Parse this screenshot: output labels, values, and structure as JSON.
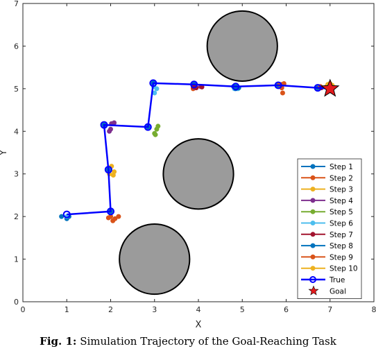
{
  "caption": {
    "label": "Fig. 1:",
    "text": "Simulation Trajectory of the Goal-Reaching Task"
  },
  "chart_data": {
    "type": "line",
    "title": "",
    "xlabel": "X",
    "ylabel": "Y",
    "xlim": [
      0,
      8
    ],
    "ylim": [
      0,
      7
    ],
    "xticks": [
      "0",
      "1",
      "2",
      "3",
      "4",
      "5",
      "6",
      "7",
      "8"
    ],
    "yticks": [
      "0",
      "1",
      "2",
      "3",
      "4",
      "5",
      "6",
      "7"
    ],
    "grid": false,
    "legend_position": "bottom-right",
    "obstacles": [
      {
        "cx": 5,
        "cy": 6,
        "r": 0.8
      },
      {
        "cx": 4,
        "cy": 3,
        "r": 0.8
      },
      {
        "cx": 3,
        "cy": 1,
        "r": 0.8
      }
    ],
    "goal": {
      "name": "Goal",
      "x": 7,
      "y": 5,
      "color": "#e41a1c"
    },
    "true_path": {
      "name": "True",
      "color": "#0000ff",
      "points": [
        [
          1.0,
          2.05
        ],
        [
          2.0,
          2.12
        ],
        [
          1.95,
          3.1
        ],
        [
          1.85,
          4.15
        ],
        [
          2.85,
          4.1
        ],
        [
          2.97,
          5.13
        ],
        [
          3.9,
          5.1
        ],
        [
          4.85,
          5.05
        ],
        [
          5.82,
          5.08
        ],
        [
          6.72,
          5.02
        ],
        [
          7.0,
          5.0
        ]
      ]
    },
    "series": [
      {
        "name": "Step 1",
        "color": "#0072BD",
        "points": [
          [
            0.88,
            2.0
          ],
          [
            1.0,
            1.95
          ],
          [
            1.05,
            2.0
          ],
          [
            2.0,
            2.12
          ],
          [
            1.95,
            3.1
          ],
          [
            1.85,
            4.15
          ],
          [
            2.85,
            4.1
          ],
          [
            2.97,
            5.13
          ],
          [
            3.9,
            5.1
          ],
          [
            4.85,
            5.05
          ],
          [
            5.82,
            5.08
          ],
          [
            6.72,
            5.02
          ]
        ]
      },
      {
        "name": "Step 2",
        "color": "#D95319",
        "points": [
          [
            2.0,
            2.0
          ],
          [
            2.1,
            1.95
          ],
          [
            2.18,
            2.0
          ],
          [
            2.05,
            1.9
          ],
          [
            1.95,
            1.97
          ],
          [
            5.9,
            5.1
          ],
          [
            5.92,
            4.9
          ],
          [
            3.88,
            5.0
          ],
          [
            6.78,
            5.05
          ]
        ]
      },
      {
        "name": "Step 3",
        "color": "#EDB120",
        "points": [
          [
            1.97,
            3.0
          ],
          [
            2.02,
            3.18
          ],
          [
            2.08,
            3.05
          ],
          [
            2.06,
            2.97
          ],
          [
            7.0,
            5.12
          ],
          [
            6.92,
            5.05
          ]
        ]
      },
      {
        "name": "Step 4",
        "color": "#7E2F8E",
        "points": [
          [
            1.97,
            4.0
          ],
          [
            2.02,
            4.18
          ],
          [
            2.08,
            4.2
          ],
          [
            2.0,
            4.05
          ],
          [
            3.9,
            5.03
          ],
          [
            4.05,
            5.05
          ]
        ]
      },
      {
        "name": "Step 5",
        "color": "#77AC30",
        "points": [
          [
            3.0,
            3.95
          ],
          [
            3.05,
            4.05
          ],
          [
            3.08,
            4.12
          ],
          [
            3.02,
            3.92
          ]
        ]
      },
      {
        "name": "Step 6",
        "color": "#4DBEEE",
        "points": [
          [
            3.0,
            4.9
          ],
          [
            3.05,
            5.0
          ],
          [
            2.98,
            5.05
          ],
          [
            4.82,
            5.0
          ],
          [
            4.9,
            5.0
          ],
          [
            1.0,
            2.0
          ]
        ]
      },
      {
        "name": "Step 7",
        "color": "#A2142F",
        "points": [
          [
            3.88,
            5.05
          ],
          [
            3.95,
            5.02
          ],
          [
            4.08,
            5.04
          ],
          [
            6.8,
            5.02
          ]
        ]
      },
      {
        "name": "Step 8",
        "color": "#0072BD",
        "points": [
          [
            4.85,
            5.0
          ],
          [
            4.92,
            5.02
          ],
          [
            4.8,
            5.05
          ]
        ]
      },
      {
        "name": "Step 9",
        "color": "#D95319",
        "points": [
          [
            5.85,
            5.1
          ],
          [
            5.95,
            5.12
          ],
          [
            5.9,
            5.02
          ]
        ]
      },
      {
        "name": "Step 10",
        "color": "#EDB120",
        "points": [
          [
            6.95,
            5.1
          ],
          [
            7.05,
            5.08
          ]
        ]
      }
    ]
  }
}
